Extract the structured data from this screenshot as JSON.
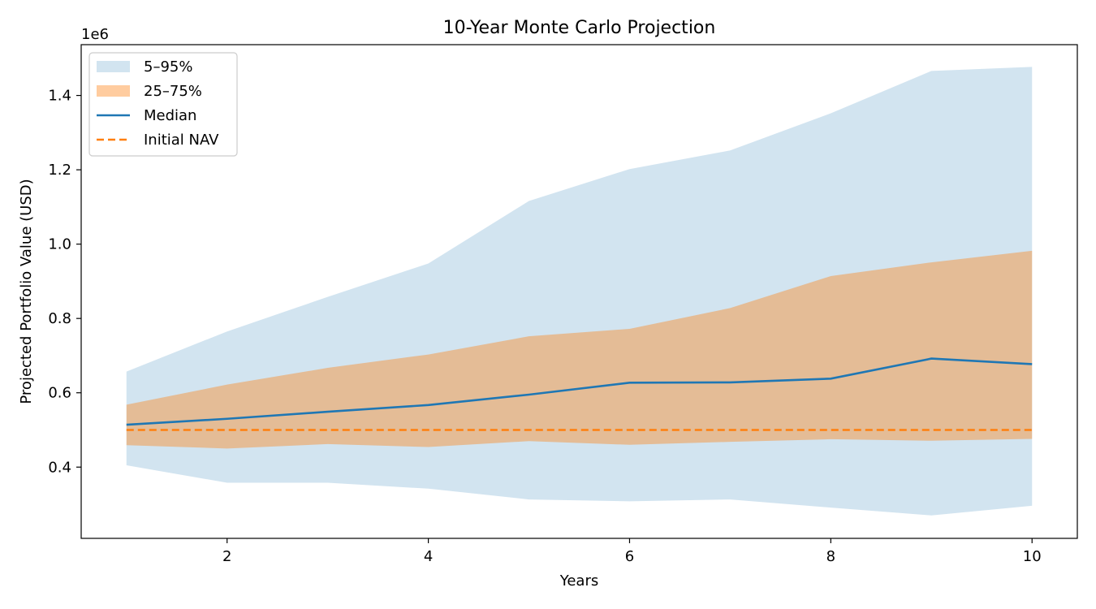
{
  "chart_data": {
    "type": "area",
    "title": "10-Year Monte Carlo Projection",
    "xlabel": "Years",
    "ylabel": "Projected Portfolio Value (USD)",
    "y_offset_label": "1e6",
    "xlim": [
      0.55,
      10.45
    ],
    "ylim": [
      0.2083,
      1.5367
    ],
    "x_ticks": [
      2,
      4,
      6,
      8,
      10
    ],
    "x_tick_labels": [
      "2",
      "4",
      "6",
      "8",
      "10"
    ],
    "y_ticks": [
      0.4,
      0.6,
      0.8,
      1.0,
      1.2,
      1.4
    ],
    "y_tick_labels": [
      "0.4",
      "0.6",
      "0.8",
      "1.0",
      "1.2",
      "1.4"
    ],
    "x": [
      1,
      2,
      3,
      4,
      5,
      6,
      7,
      8,
      9,
      10
    ],
    "series": [
      {
        "name": "5–95%",
        "kind": "band",
        "color": "#1f77b4",
        "opacity": 0.2,
        "lower": [
          0.405,
          0.358,
          0.358,
          0.342,
          0.313,
          0.308,
          0.313,
          0.291,
          0.27,
          0.296
        ],
        "upper": [
          0.657,
          0.765,
          0.858,
          0.948,
          1.116,
          1.202,
          1.252,
          1.352,
          1.466,
          1.477
        ]
      },
      {
        "name": "25–75%",
        "kind": "band",
        "color": "#ff7f0e",
        "opacity": 0.4,
        "lower": [
          0.459,
          0.45,
          0.462,
          0.454,
          0.47,
          0.46,
          0.468,
          0.475,
          0.471,
          0.476
        ],
        "upper": [
          0.568,
          0.622,
          0.667,
          0.703,
          0.752,
          0.772,
          0.828,
          0.914,
          0.951,
          0.982
        ]
      },
      {
        "name": "Median",
        "kind": "line",
        "color": "#1f77b4",
        "values": [
          0.514,
          0.53,
          0.549,
          0.567,
          0.595,
          0.627,
          0.628,
          0.638,
          0.692,
          0.677
        ]
      },
      {
        "name": "Initial NAV",
        "kind": "dashed-line",
        "color": "#ff7f0e",
        "values": [
          0.5,
          0.5,
          0.5,
          0.5,
          0.5,
          0.5,
          0.5,
          0.5,
          0.5,
          0.5
        ]
      }
    ],
    "legend_position": "upper-left",
    "grid": false
  }
}
